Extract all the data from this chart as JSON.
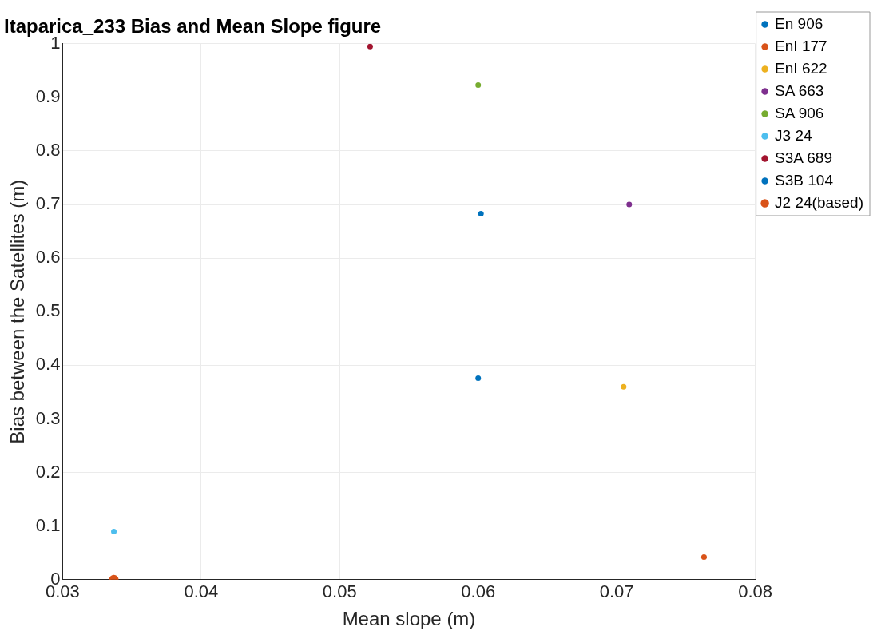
{
  "chart_data": {
    "type": "scatter",
    "title": "Itaparica_233 Bias and Mean Slope figure",
    "xlabel": "Mean slope (m)",
    "ylabel": "Bias between the Satellites (m)",
    "xlim": [
      0.03,
      0.08
    ],
    "xticks": [
      0.03,
      0.04,
      0.05,
      0.06,
      0.07,
      0.08
    ],
    "ylim": [
      0,
      1
    ],
    "yticks": [
      0,
      0.1,
      0.2,
      0.3,
      0.4,
      0.5,
      0.6,
      0.7,
      0.8,
      0.9,
      1
    ],
    "grid": true,
    "legend": "top right",
    "marker": "circle",
    "series": [
      {
        "name": "En 906",
        "color": "#0072bd",
        "x": [
          0.0602
        ],
        "values": [
          0.683
        ]
      },
      {
        "name": "EnI 177",
        "color": "#d95319",
        "x": [
          0.0763
        ],
        "values": [
          0.042
        ]
      },
      {
        "name": "EnI 622",
        "color": "#edb120",
        "x": [
          0.0705
        ],
        "values": [
          0.36
        ]
      },
      {
        "name": "SA 663",
        "color": "#7e2f8e",
        "x": [
          0.0709
        ],
        "values": [
          0.7
        ]
      },
      {
        "name": "SA 906",
        "color": "#77ac30",
        "x": [
          0.06
        ],
        "values": [
          0.923
        ]
      },
      {
        "name": "J3 24",
        "color": "#4dbeee",
        "x": [
          0.0337
        ],
        "values": [
          0.09
        ]
      },
      {
        "name": "S3A 689",
        "color": "#a2142f",
        "x": [
          0.0522
        ],
        "values": [
          0.995
        ]
      },
      {
        "name": "S3B 104",
        "color": "#0072bd",
        "x": [
          0.06
        ],
        "values": [
          0.376
        ]
      },
      {
        "name": "J2 24(based)",
        "color": "#d95319",
        "x": [
          0.0337
        ],
        "values": [
          0
        ]
      }
    ]
  }
}
